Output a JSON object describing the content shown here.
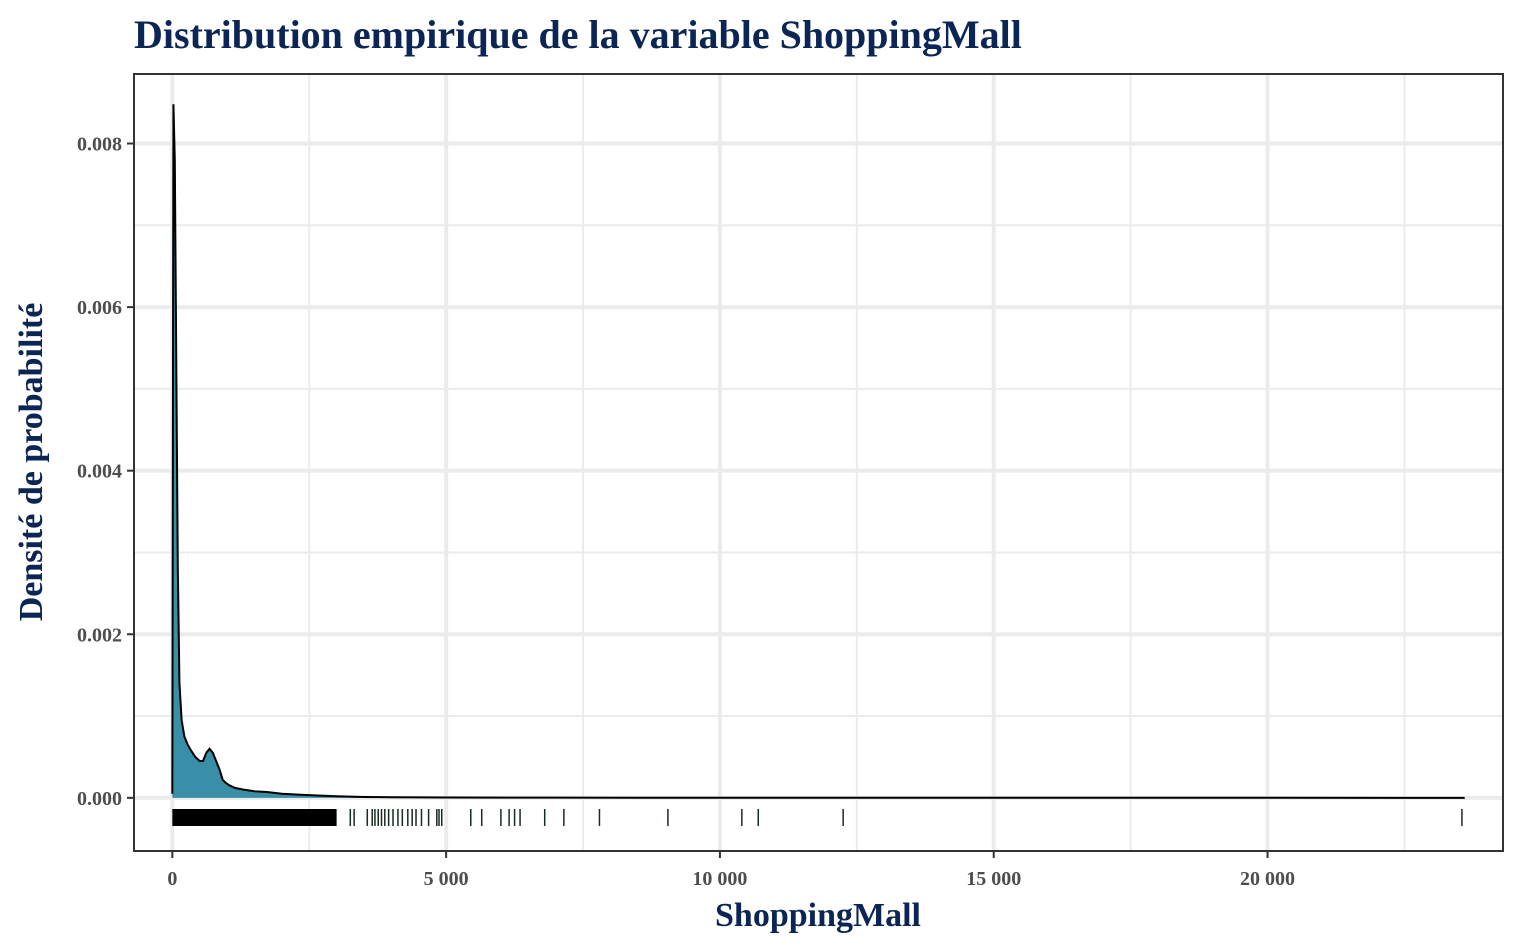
{
  "chart_data": {
    "type": "area",
    "title": "Distribution empirique de la variable ShoppingMall",
    "xlabel": "ShoppingMall",
    "ylabel": "Densité de probabilité",
    "xlim": [
      -700,
      24300
    ],
    "ylim": [
      -0.00065,
      0.00885
    ],
    "x_ticks": [
      0,
      5000,
      10000,
      15000,
      20000
    ],
    "x_tick_labels": [
      "0",
      "5 000",
      "10 000",
      "15 000",
      "20 000"
    ],
    "y_ticks": [
      0,
      0.002,
      0.004,
      0.006,
      0.008
    ],
    "y_tick_labels": [
      "0.000",
      "0.002",
      "0.004",
      "0.006",
      "0.008"
    ],
    "grid": true,
    "fill_color": "#3a8fa8",
    "line_color": "#000000",
    "density": {
      "x": [
        0,
        20,
        45,
        70,
        100,
        130,
        170,
        220,
        280,
        350,
        420,
        500,
        560,
        620,
        680,
        740,
        800,
        860,
        920,
        980,
        1050,
        1150,
        1300,
        1500,
        1750,
        2000,
        2300,
        2600,
        3000,
        3500,
        4000,
        5000,
        7000,
        10000,
        15000,
        20000,
        23600
      ],
      "y": [
        5e-05,
        0.00848,
        0.0078,
        0.0055,
        0.0028,
        0.0014,
        0.00095,
        0.00075,
        0.00065,
        0.00057,
        0.0005,
        0.00045,
        0.00045,
        0.00055,
        0.0006,
        0.00055,
        0.00045,
        0.00035,
        0.00022,
        0.00018,
        0.00015,
        0.00012,
        0.0001,
        8e-05,
        7e-05,
        5e-05,
        4e-05,
        3e-05,
        2e-05,
        1e-05,
        7e-06,
        4e-06,
        2e-06,
        1e-06,
        5e-07,
        3e-07,
        0
      ]
    },
    "rug_dense_range": [
      0,
      3000
    ],
    "rug_points": [
      3250,
      3320,
      3560,
      3650,
      3700,
      3760,
      3820,
      3880,
      3950,
      4030,
      4120,
      4200,
      4300,
      4380,
      4450,
      4550,
      4680,
      4830,
      4870,
      4920,
      5450,
      5650,
      6000,
      6150,
      6250,
      6350,
      6800,
      7150,
      7800,
      9050,
      10400,
      10700,
      12250,
      23550
    ]
  }
}
